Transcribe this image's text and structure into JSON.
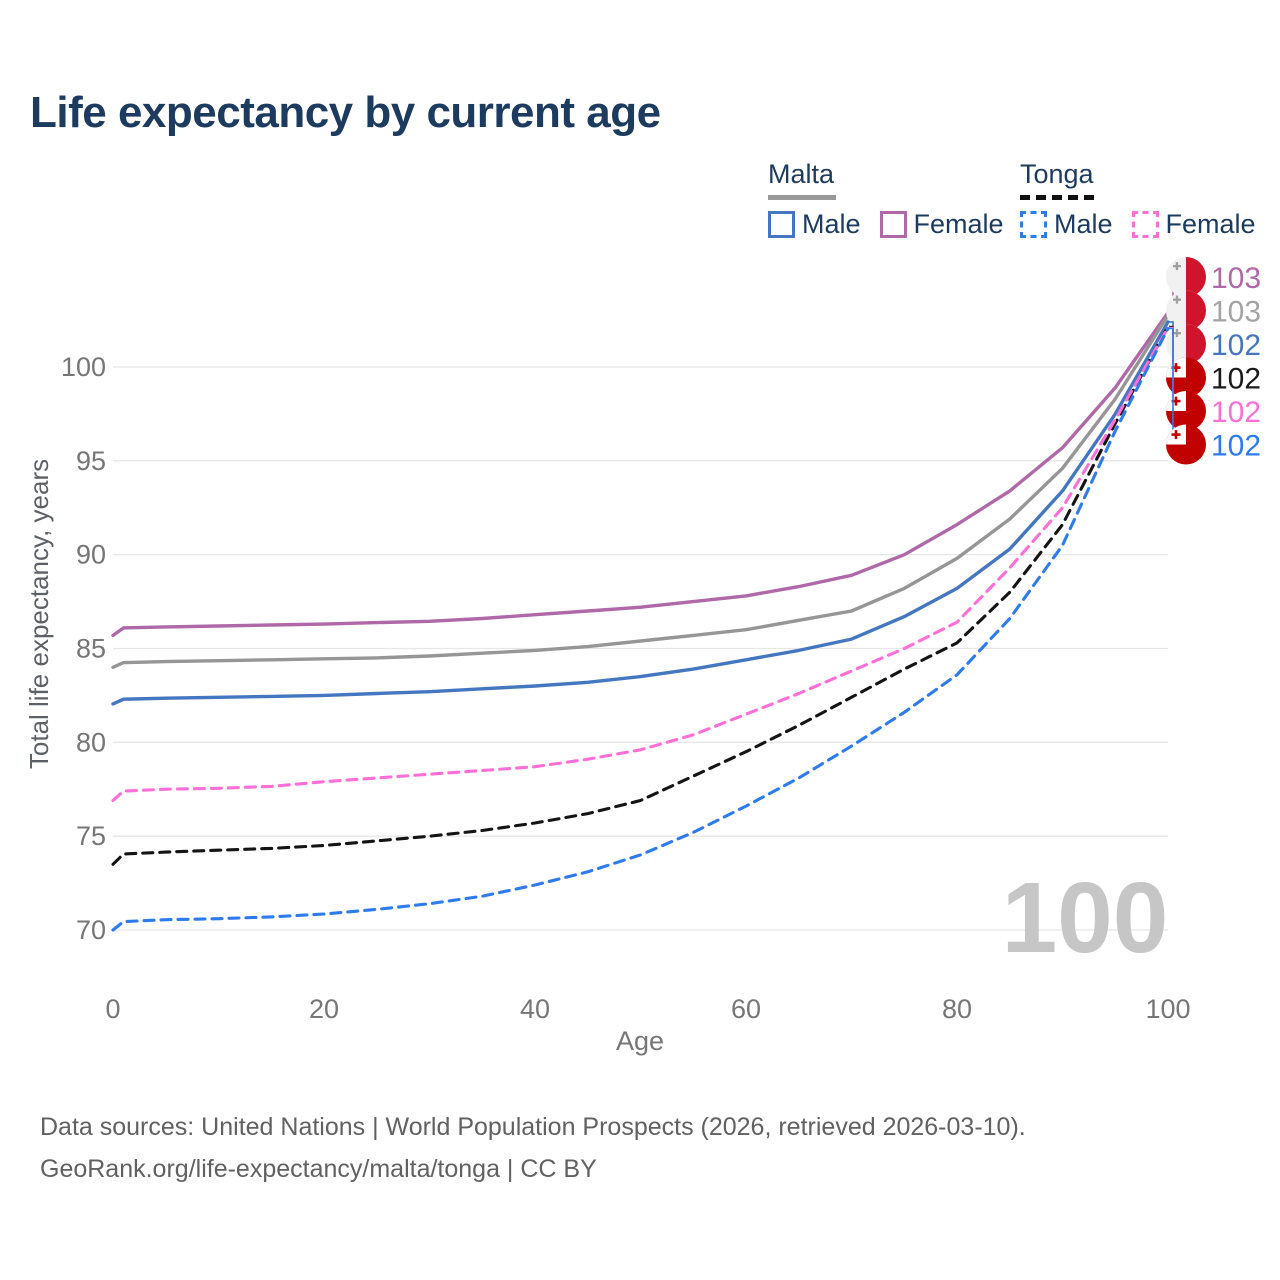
{
  "title": "Life expectancy by current age",
  "legend": {
    "groups": [
      {
        "label": "Malta",
        "line_style": "solid",
        "underline_color": "#999999",
        "items": [
          {
            "label": "Male",
            "color": "#4577c1",
            "style": "solid"
          },
          {
            "label": "Female",
            "color": "#b069a8",
            "style": "solid"
          }
        ]
      },
      {
        "label": "Tonga",
        "line_style": "dashed",
        "underline_color": "#111111",
        "items": [
          {
            "label": "Male",
            "color": "#2e7bed",
            "style": "dashed"
          },
          {
            "label": "Female",
            "color": "#ff6fd8",
            "style": "dashed"
          }
        ]
      }
    ]
  },
  "chart_data": {
    "type": "line",
    "title": "Life expectancy by current age",
    "xlabel": "Age",
    "ylabel": "Total life expectancy, years",
    "xlim": [
      0,
      100
    ],
    "ylim": [
      68,
      104
    ],
    "xticks": [
      0,
      20,
      40,
      60,
      80,
      100
    ],
    "yticks": [
      70,
      75,
      80,
      85,
      90,
      95,
      100
    ],
    "grid": "horizontal",
    "legend_position": "top-right",
    "watermark": "100",
    "x": [
      0,
      1,
      5,
      10,
      15,
      20,
      25,
      30,
      35,
      40,
      45,
      50,
      55,
      60,
      65,
      70,
      75,
      80,
      85,
      90,
      95,
      100
    ],
    "series": [
      {
        "id": "malta_female",
        "name": "Malta Female",
        "country": "Malta",
        "sex": "Female",
        "color": "#b069a8",
        "label_color": "#b069a8",
        "dash": "solid",
        "flag": "malta",
        "end_label": "103",
        "values": [
          85.7,
          86.1,
          86.15,
          86.2,
          86.25,
          86.3,
          86.38,
          86.45,
          86.6,
          86.8,
          87.0,
          87.2,
          87.5,
          87.8,
          88.3,
          88.9,
          90.0,
          91.6,
          93.4,
          95.7,
          98.9,
          102.9
        ]
      },
      {
        "id": "malta_all",
        "name": "Malta Both sexes",
        "country": "Malta",
        "sex": "Both",
        "color": "#969696",
        "label_color": "#a3a3a3",
        "dash": "solid",
        "flag": "malta",
        "end_label": "103",
        "values": [
          84.0,
          84.25,
          84.3,
          84.35,
          84.4,
          84.45,
          84.5,
          84.6,
          84.75,
          84.9,
          85.1,
          85.4,
          85.7,
          86.0,
          86.5,
          87.0,
          88.2,
          89.8,
          91.9,
          94.6,
          98.3,
          102.75
        ]
      },
      {
        "id": "malta_male",
        "name": "Malta Male",
        "country": "Malta",
        "sex": "Male",
        "color": "#4577c1",
        "label_color": "#4577c1",
        "dash": "solid",
        "flag": "malta",
        "end_label": "102",
        "values": [
          82.05,
          82.3,
          82.35,
          82.4,
          82.45,
          82.5,
          82.6,
          82.7,
          82.85,
          83.0,
          83.2,
          83.5,
          83.9,
          84.4,
          84.9,
          85.5,
          86.7,
          88.2,
          90.3,
          93.4,
          97.5,
          102.4
        ]
      },
      {
        "id": "tonga_all",
        "name": "Tonga Both sexes",
        "country": "Tonga",
        "sex": "Both",
        "color": "#141414",
        "label_color": "#1a1a1a",
        "dash": "dashed",
        "flag": "tonga",
        "end_label": "102",
        "values": [
          73.5,
          74.05,
          74.15,
          74.25,
          74.35,
          74.5,
          74.75,
          75.0,
          75.3,
          75.7,
          76.2,
          76.9,
          78.2,
          79.5,
          80.9,
          82.4,
          83.9,
          85.3,
          88.0,
          91.6,
          97.0,
          102.15
        ]
      },
      {
        "id": "tonga_female",
        "name": "Tonga Female",
        "country": "Tonga",
        "sex": "Female",
        "color": "#ff6fd8",
        "label_color": "#ff6fd8",
        "dash": "dashed",
        "flag": "tonga",
        "end_label": "102",
        "values": [
          76.9,
          77.4,
          77.5,
          77.55,
          77.65,
          77.9,
          78.1,
          78.3,
          78.5,
          78.7,
          79.1,
          79.6,
          80.4,
          81.5,
          82.6,
          83.8,
          85.0,
          86.4,
          89.3,
          92.5,
          97.2,
          102.1
        ]
      },
      {
        "id": "tonga_male",
        "name": "Tonga Male",
        "country": "Tonga",
        "sex": "Male",
        "color": "#2e7bed",
        "label_color": "#2e7bed",
        "dash": "dashed",
        "flag": "tonga",
        "end_label": "102",
        "values": [
          70.0,
          70.45,
          70.55,
          70.6,
          70.7,
          70.85,
          71.1,
          71.4,
          71.8,
          72.4,
          73.1,
          74.0,
          75.2,
          76.6,
          78.1,
          79.8,
          81.6,
          83.6,
          86.6,
          90.5,
          96.6,
          102.05
        ]
      }
    ],
    "end_label_order": [
      "malta_female",
      "malta_all",
      "malta_male",
      "tonga_all",
      "tonga_female",
      "tonga_male"
    ]
  },
  "footer": {
    "line1": "Data sources: United Nations | World Population Prospects (2026, retrieved 2026-03-10).",
    "line2": "GeoRank.org/life-expectancy/malta/tonga | CC BY"
  }
}
